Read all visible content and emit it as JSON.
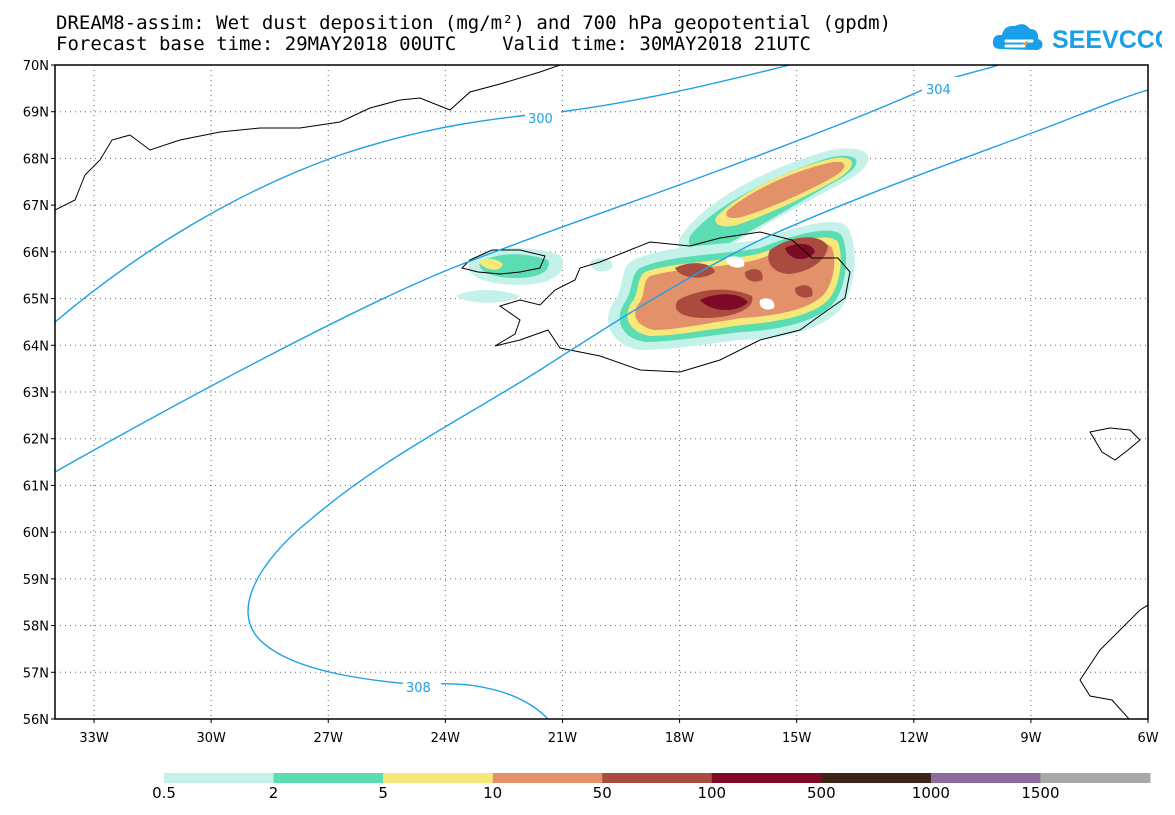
{
  "title_line1": "DREAM8-assim: Wet dust deposition (mg/m²) and 700 hPa geopotential (gpdm)",
  "title_line2": "Forecast base time: 29MAY2018 00UTC    Valid time: 30MAY2018 21UTC",
  "logo_text": "SEEVCCC",
  "axes": {
    "lat_labels": [
      "70N",
      "69N",
      "68N",
      "67N",
      "66N",
      "65N",
      "64N",
      "63N",
      "62N",
      "61N",
      "60N",
      "59N",
      "58N",
      "57N",
      "56N"
    ],
    "lon_labels": [
      "33W",
      "30W",
      "27W",
      "24W",
      "21W",
      "18W",
      "15W",
      "12W",
      "9W",
      "6W"
    ]
  },
  "contours": [
    {
      "label": "300"
    },
    {
      "label": "304"
    },
    {
      "label": "308"
    }
  ],
  "colorbar": {
    "labels": [
      "0.5",
      "2",
      "5",
      "10",
      "50",
      "100",
      "500",
      "1000",
      "1500"
    ],
    "colors": [
      "#c4f2ea",
      "#5cdcb2",
      "#f6e97a",
      "#e3916a",
      "#a94c3f",
      "#7e0a27",
      "#3d2417",
      "#8f6b9c",
      "#a8a8a8"
    ]
  },
  "colors": {
    "contour": "#1ea0e6",
    "logo": "#1aa0e8"
  }
}
